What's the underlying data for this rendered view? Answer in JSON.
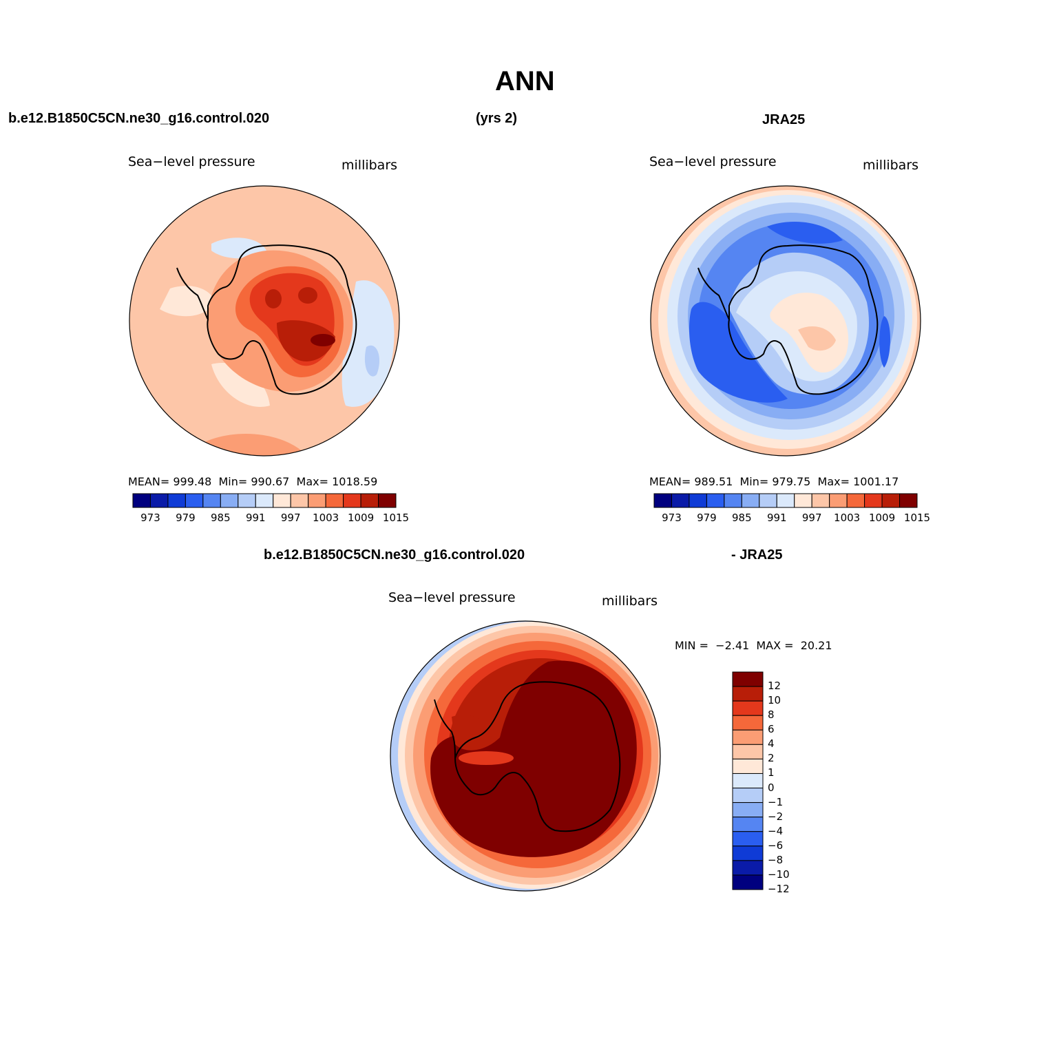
{
  "figure": {
    "title": "ANN",
    "case_name": "b.e12.B1850C5CN.ne30_g16.control.020",
    "years_label": "(yrs 2)",
    "obs_name": "JRA25",
    "diff_case_label": "b.e12.B1850C5CN.ne30_g16.control.020",
    "diff_obs_label": "- JRA25"
  },
  "colors": {
    "scale": [
      "#00007f",
      "#0a1ba8",
      "#0f3bd6",
      "#2a5ef0",
      "#5585f2",
      "#88adf4",
      "#b5cdf7",
      "#dbe9fb",
      "#ffe8d8",
      "#fdc6a8",
      "#fb9d74",
      "#f5683a",
      "#e4381c",
      "#b81e08",
      "#7f0000"
    ],
    "coast": "#000000"
  },
  "chart_data": [
    {
      "type": "map",
      "panel": "model",
      "projection": "south-polar-stereographic",
      "field": "Sea−level pressure",
      "units": "millibars",
      "stats": {
        "mean_label": "MEAN=",
        "mean": "999.48",
        "min_label": "Min=",
        "min": "990.67",
        "max_label": "Max=",
        "max": "1018.59"
      },
      "colorbar": {
        "orientation": "horizontal",
        "levels": [
          973,
          976,
          979,
          982,
          985,
          988,
          991,
          994,
          997,
          1000,
          1003,
          1006,
          1009,
          1012,
          1015
        ],
        "tick_labels": [
          "973",
          "979",
          "985",
          "991",
          "997",
          "1003",
          "1009",
          "1015"
        ]
      }
    },
    {
      "type": "map",
      "panel": "observations",
      "projection": "south-polar-stereographic",
      "field": "Sea−level pressure",
      "units": "millibars",
      "stats": {
        "mean_label": "MEAN=",
        "mean": "989.51",
        "min_label": "Min=",
        "min": "979.75",
        "max_label": "Max=",
        "max": "1001.17"
      },
      "colorbar": {
        "orientation": "horizontal",
        "levels": [
          973,
          976,
          979,
          982,
          985,
          988,
          991,
          994,
          997,
          1000,
          1003,
          1006,
          1009,
          1012,
          1015
        ],
        "tick_labels": [
          "973",
          "979",
          "985",
          "991",
          "997",
          "1003",
          "1009",
          "1015"
        ]
      }
    },
    {
      "type": "map",
      "panel": "difference",
      "projection": "south-polar-stereographic",
      "field": "Sea−level pressure",
      "units": "millibars",
      "stats": {
        "min_label": "MIN =",
        "min": "−2.41",
        "max_label": "MAX =",
        "max": "20.21"
      },
      "colorbar": {
        "orientation": "vertical",
        "levels": [
          -12,
          -10,
          -8,
          -6,
          -4,
          -2,
          -1,
          0,
          1,
          2,
          4,
          6,
          8,
          10,
          12
        ],
        "tick_labels": [
          "12",
          "10",
          "8",
          "6",
          "4",
          "2",
          "1",
          "0",
          "−1",
          "−2",
          "−4",
          "−6",
          "−8",
          "−10",
          "−12"
        ]
      }
    }
  ]
}
